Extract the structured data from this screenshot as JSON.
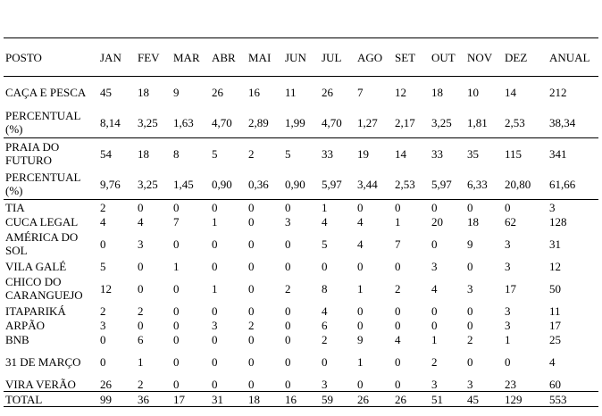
{
  "table": {
    "header": [
      "POSTO",
      "JAN",
      "FEV",
      "MAR",
      "ABR",
      "MAI",
      "JUN",
      "JUL",
      "AGO",
      "SET",
      "OUT",
      "NOV",
      "DEZ",
      "ANUAL"
    ],
    "rows": [
      [
        "CAÇA E PESCA",
        "45",
        "18",
        "9",
        "26",
        "16",
        "11",
        "26",
        "7",
        "12",
        "18",
        "10",
        "14",
        "212"
      ],
      [
        "PERCENTUAL (%)",
        "8,14",
        "3,25",
        "1,63",
        "4,70",
        "2,89",
        "1,99",
        "4,70",
        "1,27",
        "2,17",
        "3,25",
        "1,81",
        "2,53",
        "38,34"
      ],
      [
        "PRAIA DO FUTURO",
        "54",
        "18",
        "8",
        "5",
        "2",
        "5",
        "33",
        "19",
        "14",
        "33",
        "35",
        "115",
        "341"
      ],
      [
        "PERCENTUAL (%)",
        "9,76",
        "3,25",
        "1,45",
        "0,90",
        "0,36",
        "0,90",
        "5,97",
        "3,44",
        "2,53",
        "5,97",
        "6,33",
        "20,80",
        "61,66"
      ],
      [
        "TIA",
        "2",
        "0",
        "0",
        "0",
        "0",
        "0",
        "1",
        "0",
        "0",
        "0",
        "0",
        "0",
        "3"
      ],
      [
        "CUCA LEGAL",
        "4",
        "4",
        "7",
        "1",
        "0",
        "3",
        "4",
        "4",
        "1",
        "20",
        "18",
        "62",
        "128"
      ],
      [
        "AMÉRICA DO SOL",
        "0",
        "3",
        "0",
        "0",
        "0",
        "0",
        "5",
        "4",
        "7",
        "0",
        "9",
        "3",
        "31"
      ],
      [
        "VILA GALÉ",
        "5",
        "0",
        "1",
        "0",
        "0",
        "0",
        "0",
        "0",
        "0",
        "3",
        "0",
        "3",
        "12"
      ],
      [
        "CHICO DO CARANGUEJO",
        "12",
        "0",
        "0",
        "1",
        "0",
        "2",
        "8",
        "1",
        "2",
        "4",
        "3",
        "17",
        "50"
      ],
      [
        "ITAPARIKÁ",
        "2",
        "2",
        "0",
        "0",
        "0",
        "0",
        "4",
        "0",
        "0",
        "0",
        "0",
        "3",
        "11"
      ],
      [
        "ARPÃO",
        "3",
        "0",
        "0",
        "3",
        "2",
        "0",
        "6",
        "0",
        "0",
        "0",
        "0",
        "3",
        "17"
      ],
      [
        "BNB",
        "0",
        "6",
        "0",
        "0",
        "0",
        "0",
        "2",
        "9",
        "4",
        "1",
        "2",
        "1",
        "25"
      ],
      [
        "31 DE MARÇO",
        "0",
        "1",
        "0",
        "0",
        "0",
        "0",
        "0",
        "1",
        "0",
        "2",
        "0",
        "0",
        "4"
      ],
      [
        "VIRA VERÃO",
        "26",
        "2",
        "0",
        "0",
        "0",
        "0",
        "3",
        "0",
        "0",
        "3",
        "3",
        "23",
        "60"
      ],
      [
        "TOTAL",
        "99",
        "36",
        "17",
        "31",
        "18",
        "16",
        "59",
        "26",
        "26",
        "51",
        "45",
        "129",
        "553"
      ]
    ]
  }
}
